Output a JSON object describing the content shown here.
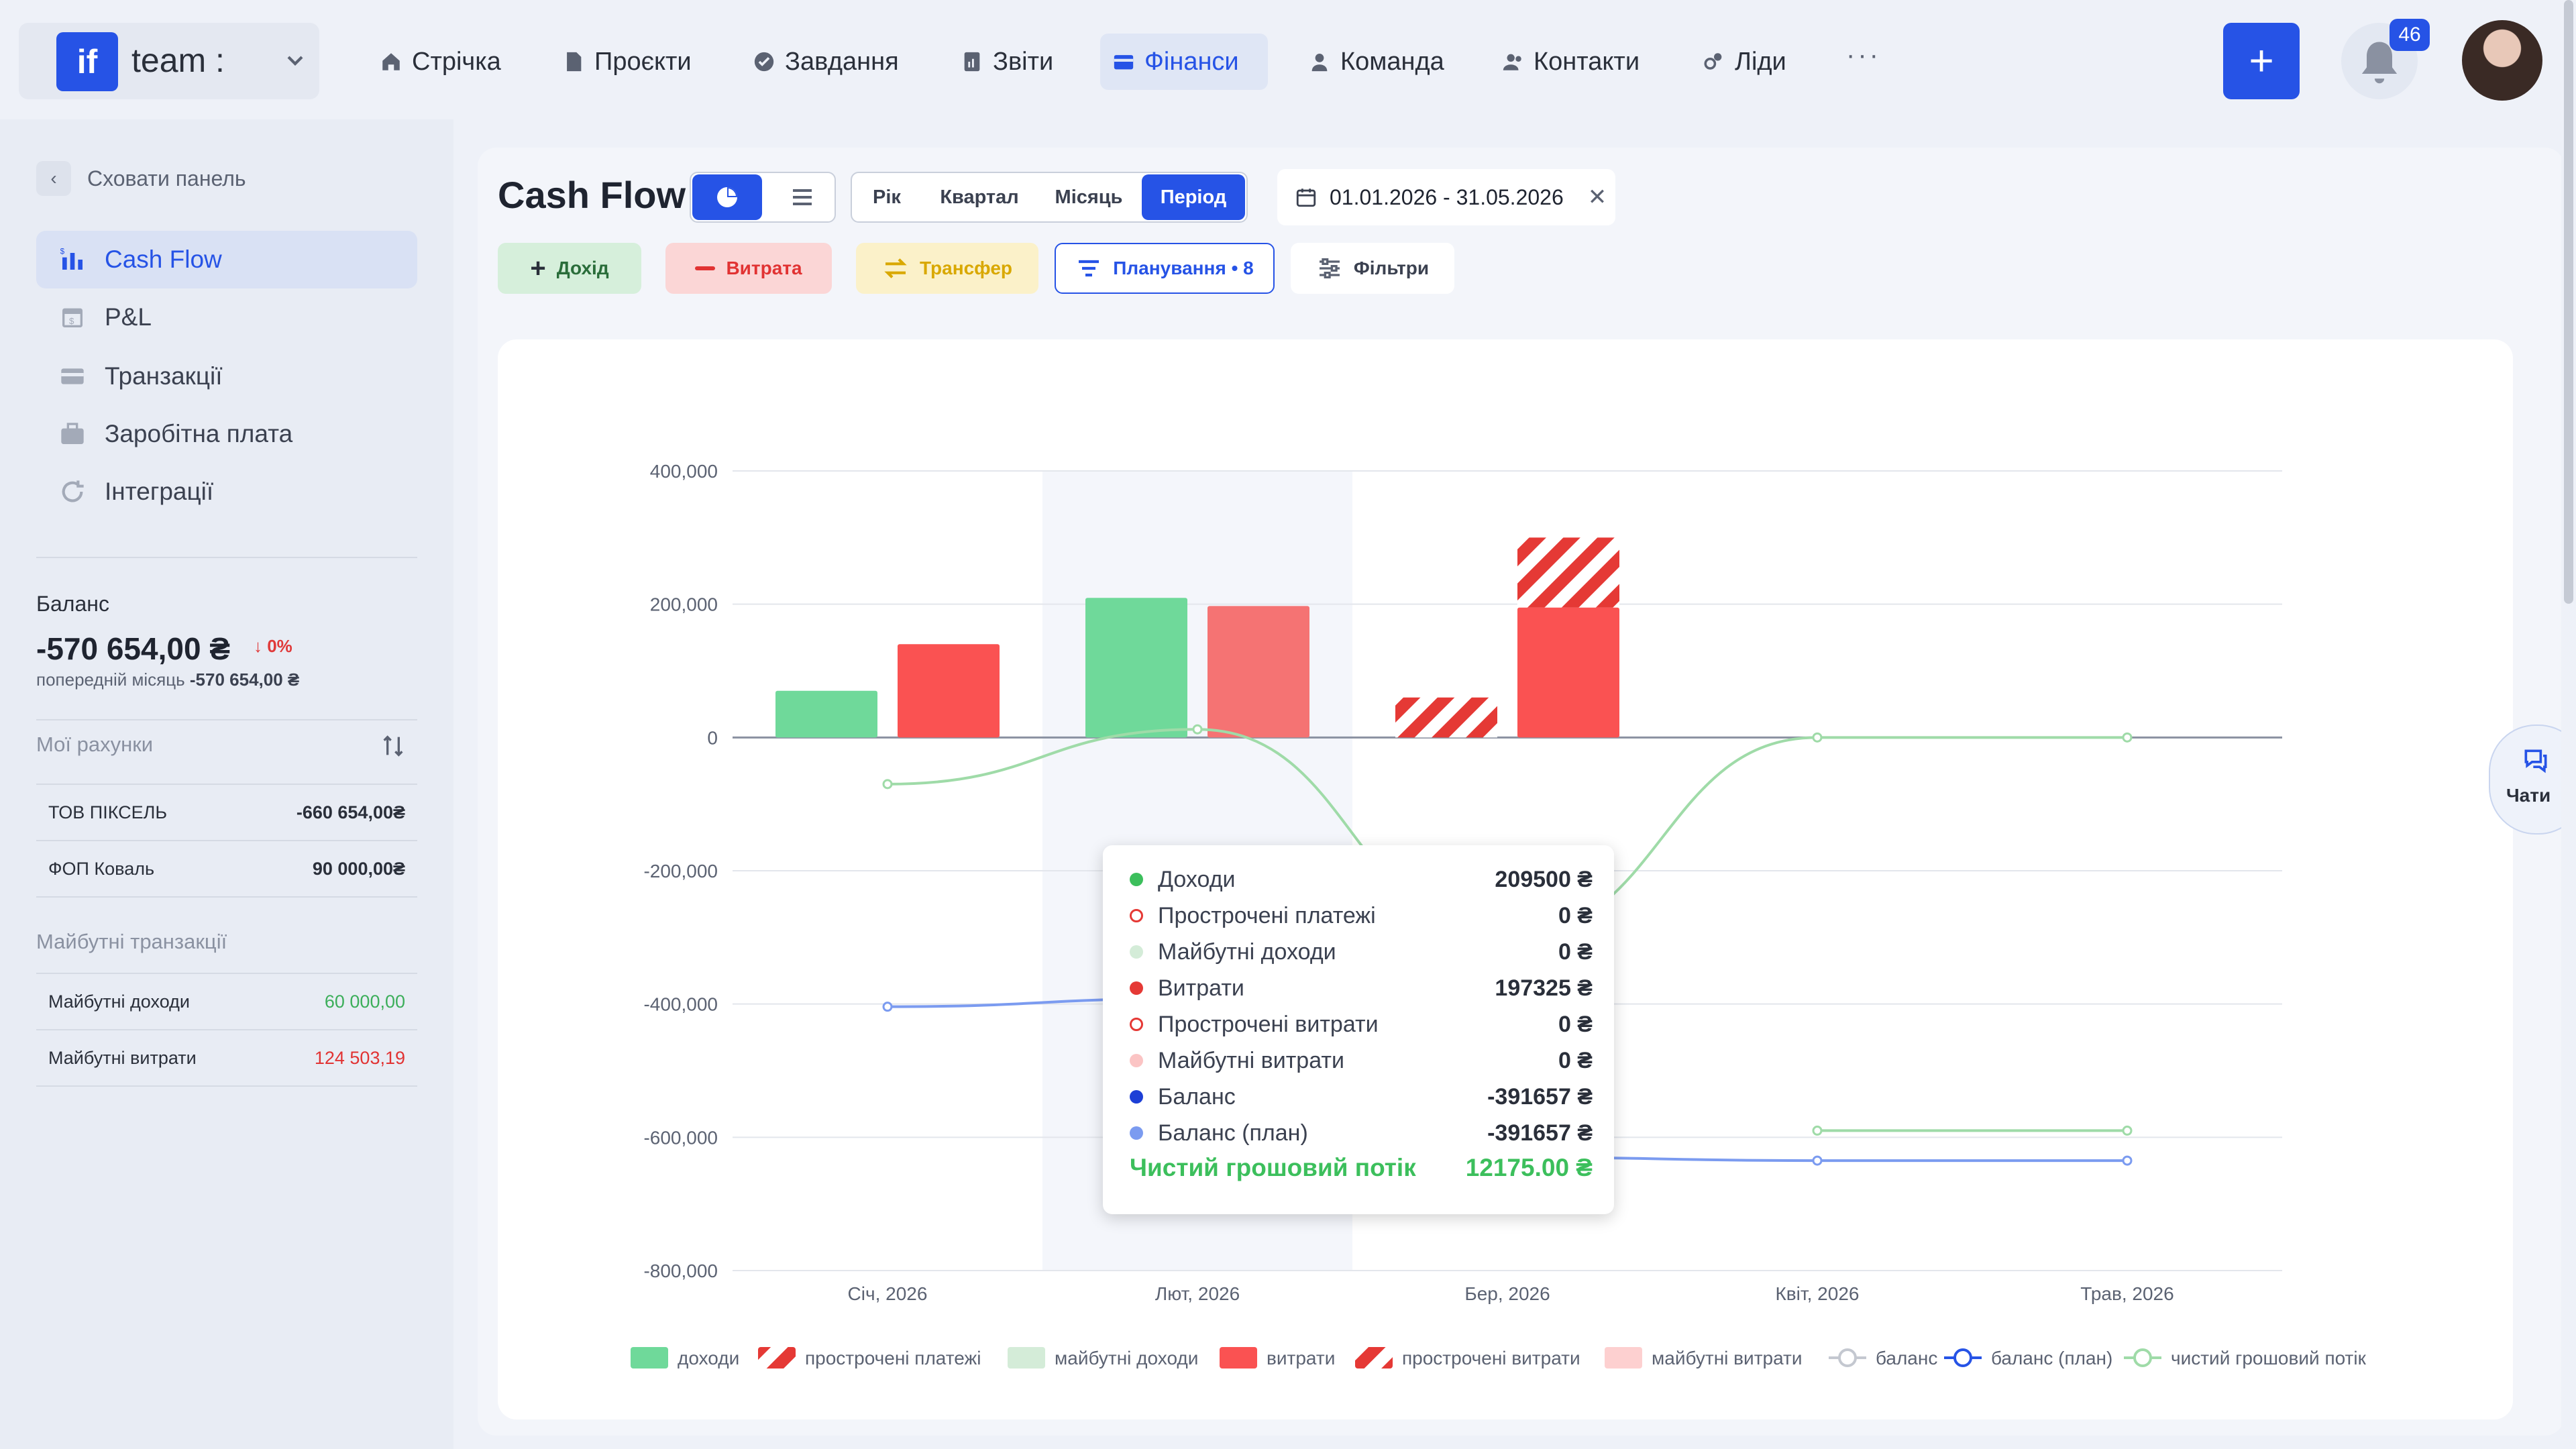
{
  "app": {
    "logo_text": "if",
    "team_name": "team :"
  },
  "nav": {
    "items": [
      {
        "label": "Стрічка"
      },
      {
        "label": "Проєкти"
      },
      {
        "label": "Завдання"
      },
      {
        "label": "Звіти"
      },
      {
        "label": "Фінанси"
      },
      {
        "label": "Команда"
      },
      {
        "label": "Контакти"
      },
      {
        "label": "Ліди"
      }
    ],
    "active": "Фінанси",
    "more": "···",
    "plus": "+",
    "notifications": "46"
  },
  "sidebar": {
    "hide_label": "Сховати панель",
    "items": [
      {
        "label": "Cash Flow"
      },
      {
        "label": "P&L"
      },
      {
        "label": "Транзакції"
      },
      {
        "label": "Заробітна плата"
      },
      {
        "label": "Інтеграції"
      }
    ],
    "balance": {
      "label": "Баланс",
      "value": "-570 654,00 ₴",
      "change": "↓ 0%",
      "prev_label": "попередній місяць",
      "prev_value": "-570 654,00 ₴"
    },
    "accounts_label": "Мої рахунки",
    "accounts": [
      {
        "name": "ТОВ ПІКСЕЛЬ",
        "value": "-660 654,00₴"
      },
      {
        "name": "ФОП Коваль",
        "value": "90 000,00₴"
      }
    ],
    "future_label": "Майбутні транзакції",
    "future": [
      {
        "name": "Майбутні доходи",
        "value": "60 000,00"
      },
      {
        "name": "Майбутні витрати",
        "value": "124 503,19"
      }
    ]
  },
  "toolbar": {
    "title": "Cash Flow",
    "periods": [
      "Рік",
      "Квартал",
      "Місяць",
      "Період"
    ],
    "active_period": "Період",
    "date_range": "01.01.2026 - 31.05.2026",
    "income_label": "Дохід",
    "expense_label": "Витрата",
    "transfer_label": "Трансфер",
    "plan_label": "Планування • 8",
    "filter_label": "Фільтри"
  },
  "chats_label": "Чати",
  "colors": {
    "accent": "#2653e6",
    "income": "#6fd99a",
    "expense": "#fa5252",
    "expense_highlight": "#f57373",
    "overdue_hatch": "#e53935",
    "future_income": "#d4ecd8",
    "future_expense": "#fdd0d0",
    "balance": "#2653e6",
    "balance_plan": "#7b9bf0",
    "net_flow": "#9fdba8"
  },
  "chart_data": {
    "type": "bar",
    "categories": [
      "Січ, 2026",
      "Лют, 2026",
      "Бер, 2026",
      "Квіт, 2026",
      "Трав, 2026"
    ],
    "ylim": [
      -800000,
      400000
    ],
    "yticks": [
      400000,
      200000,
      0,
      -200000,
      -400000,
      -600000,
      -800000
    ],
    "ytick_labels": [
      "400,000",
      "200,000",
      "0",
      "-200,000",
      "-400,000",
      "-600,000",
      "-800,000"
    ],
    "highlighted_category": "Лют, 2026",
    "series": [
      {
        "name": "доходи",
        "kind": "bar",
        "values": [
          70000,
          209500,
          0,
          0,
          0
        ]
      },
      {
        "name": "прострочені платежі",
        "kind": "bar",
        "values": [
          0,
          0,
          60000,
          0,
          0
        ]
      },
      {
        "name": "майбутні доходи",
        "kind": "bar",
        "values": [
          0,
          0,
          0,
          0,
          0
        ]
      },
      {
        "name": "витрати",
        "kind": "bar",
        "values": [
          140000,
          197325,
          195000,
          0,
          0
        ]
      },
      {
        "name": "прострочені витрати",
        "kind": "bar",
        "values": [
          0,
          0,
          105000,
          0,
          0
        ]
      },
      {
        "name": "майбутні витрати",
        "kind": "bar",
        "values": [
          0,
          0,
          0,
          0,
          0
        ]
      },
      {
        "name": "баланс",
        "kind": "line",
        "values": [
          null,
          null,
          null,
          -590000,
          -590000
        ]
      },
      {
        "name": "баланс (план)",
        "kind": "line",
        "values": [
          -404000,
          -391657,
          -630000,
          -635000,
          -635000
        ]
      },
      {
        "name": "чистий грошовий потік",
        "kind": "line",
        "values": [
          -70000,
          12175,
          -300000,
          0,
          0
        ]
      }
    ],
    "legend": [
      "доходи",
      "прострочені платежі",
      "майбутні доходи",
      "витрати",
      "прострочені витрати",
      "майбутні витрати",
      "баланс",
      "баланс (план)",
      "чистий грошовий потік"
    ],
    "legend_position": "bottom"
  },
  "tooltip": {
    "rows": [
      {
        "label": "Доходи",
        "value": "209500 ₴"
      },
      {
        "label": "Прострочені платежі",
        "value": "0 ₴"
      },
      {
        "label": "Майбутні доходи",
        "value": "0 ₴"
      },
      {
        "label": "Витрати",
        "value": "197325 ₴"
      },
      {
        "label": "Прострочені витрати",
        "value": "0 ₴"
      },
      {
        "label": "Майбутні витрати",
        "value": "0 ₴"
      },
      {
        "label": "Баланс",
        "value": "-391657 ₴"
      },
      {
        "label": "Баланс (план)",
        "value": "-391657 ₴"
      }
    ],
    "net_label": "Чистий грошовий потік",
    "net_value": "12175.00 ₴"
  }
}
